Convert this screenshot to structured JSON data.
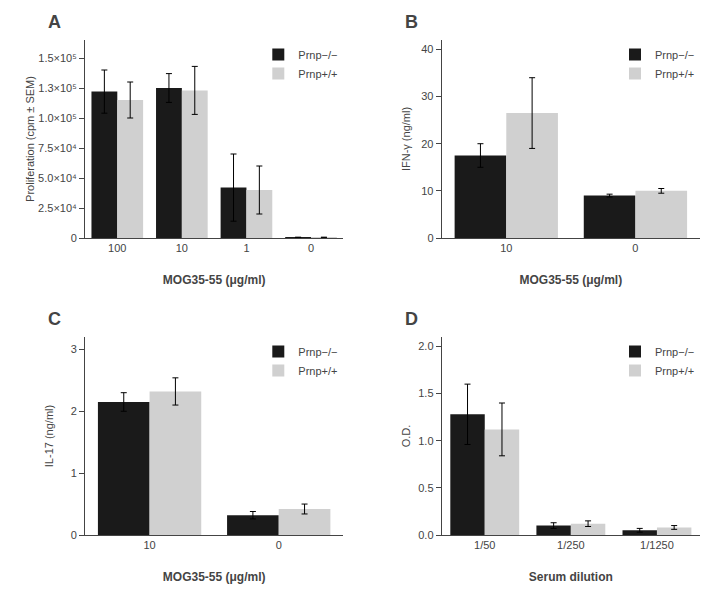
{
  "chart_data": [
    {
      "type": "bar",
      "title": "A",
      "xlabel": "MOG35-55 (μg/ml)",
      "ylabel": "Proliferation (cpm ± SEM)",
      "categories": [
        "100",
        "10",
        "1",
        "0"
      ],
      "series": [
        {
          "name": "Prnp−/−",
          "color": "#1a1a1a",
          "values": [
            122000,
            125000,
            42000,
            500
          ],
          "errors": [
            18000,
            12000,
            28000,
            200
          ]
        },
        {
          "name": "Prnp+/+",
          "color": "#d0d0d0",
          "values": [
            115000,
            123000,
            40000,
            500
          ],
          "errors": [
            15000,
            20000,
            20000,
            200
          ]
        }
      ],
      "ylim": [
        0,
        165000
      ],
      "yticks": [
        0,
        {
          "value": 25000,
          "label": "2.5×10⁴"
        },
        {
          "value": 50000,
          "label": "5.0×10⁴"
        },
        {
          "value": 75000,
          "label": "7.5×10⁴"
        },
        {
          "value": 100000,
          "label": "1.0×10⁵"
        },
        {
          "value": 125000,
          "label": "1.3×10⁵"
        },
        {
          "value": 150000,
          "label": "1.5×10⁵"
        }
      ],
      "legend": "upper right",
      "grid": false
    },
    {
      "type": "bar",
      "title": "B",
      "xlabel": "MOG35-55 (μg/ml)",
      "ylabel": "IFN-γ (ng/ml)",
      "categories": [
        "10",
        "0"
      ],
      "series": [
        {
          "name": "Prnp−/−",
          "color": "#1a1a1a",
          "values": [
            17.5,
            9.0
          ],
          "errors": [
            2.5,
            0.3
          ]
        },
        {
          "name": "Prnp+/+",
          "color": "#d0d0d0",
          "values": [
            26.5,
            10.0
          ],
          "errors": [
            7.5,
            0.5
          ]
        }
      ],
      "ylim": [
        0,
        42
      ],
      "yticks": [
        0,
        10,
        20,
        30,
        40
      ],
      "legend": "upper right",
      "grid": false
    },
    {
      "type": "bar",
      "title": "C",
      "xlabel": "MOG35-55 (μg/ml)",
      "ylabel": "IL-17 (ng/ml)",
      "categories": [
        "10",
        "0"
      ],
      "series": [
        {
          "name": "Prnp−/−",
          "color": "#1a1a1a",
          "values": [
            2.15,
            0.32
          ],
          "errors": [
            0.15,
            0.06
          ]
        },
        {
          "name": "Prnp+/+",
          "color": "#d0d0d0",
          "values": [
            2.32,
            0.42
          ],
          "errors": [
            0.22,
            0.08
          ]
        }
      ],
      "ylim": [
        0,
        3.2
      ],
      "yticks": [
        0,
        1,
        2,
        3
      ],
      "legend": "upper right",
      "grid": false
    },
    {
      "type": "bar",
      "title": "D",
      "xlabel": "Serum dilution",
      "ylabel": "O.D.",
      "categories": [
        "1/50",
        "1/250",
        "1/1250"
      ],
      "series": [
        {
          "name": "Prnp−/−",
          "color": "#1a1a1a",
          "values": [
            1.28,
            0.1,
            0.05
          ],
          "errors": [
            0.32,
            0.03,
            0.02
          ]
        },
        {
          "name": "Prnp+/+",
          "color": "#d0d0d0",
          "values": [
            1.12,
            0.12,
            0.08
          ],
          "errors": [
            0.28,
            0.03,
            0.02
          ]
        }
      ],
      "ylim": [
        0,
        2.1
      ],
      "yticks": [
        {
          "value": 0,
          "label": "0.0"
        },
        0.5,
        {
          "value": 1,
          "label": "1.0"
        },
        1.5,
        {
          "value": 2,
          "label": "2.0"
        }
      ],
      "legend": "upper right",
      "grid": false
    }
  ]
}
